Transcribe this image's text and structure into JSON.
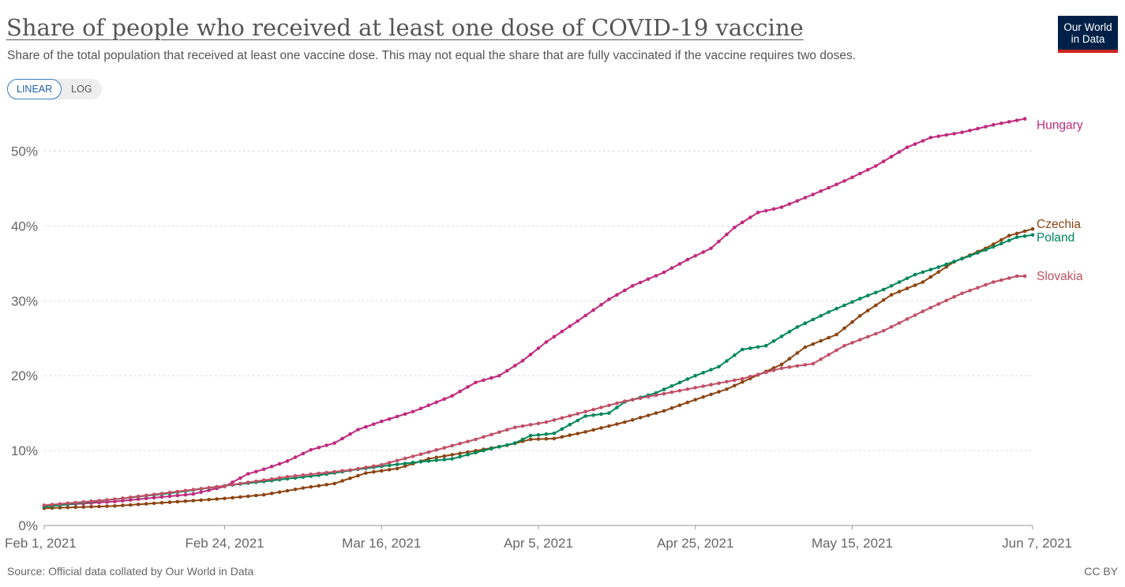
{
  "header": {
    "title": "Share of people who received at least one dose of COVID-19 vaccine",
    "subtitle": "Share of the total population that received at least one vaccine dose. This may not equal the share that are fully vaccinated if the vaccine requires two doses.",
    "logo_line1": "Our World",
    "logo_line2": "in Data"
  },
  "controls": {
    "linear_label": "LINEAR",
    "log_label": "LOG",
    "selected": "LINEAR"
  },
  "footer": {
    "source": "Source: Official data collated by Our World in Data",
    "license": "CC BY"
  },
  "chart_data": {
    "type": "line",
    "y_unit": "%",
    "ylim": [
      0,
      55
    ],
    "y_ticks": [
      0,
      10,
      20,
      30,
      40,
      50
    ],
    "y_tick_labels": [
      "0%",
      "10%",
      "20%",
      "30%",
      "40%",
      "50%"
    ],
    "x_range": [
      "2021-02-01",
      "2021-06-07"
    ],
    "x_ticks": [
      "2021-02-01",
      "2021-02-24",
      "2021-03-16",
      "2021-04-05",
      "2021-04-25",
      "2021-05-15",
      "2021-06-07"
    ],
    "x_tick_labels": [
      "Feb 1, 2021",
      "Feb 24, 2021",
      "Mar 16, 2021",
      "Apr 5, 2021",
      "Apr 25, 2021",
      "May 15, 2021",
      "Jun 7, 2021"
    ],
    "grid": "horizontal-dashed",
    "legend": "line-end labels",
    "series": [
      {
        "name": "Hungary",
        "color": "#c0297e",
        "points": [
          [
            "2021-02-01",
            2.6
          ],
          [
            "2021-02-10",
            3.2
          ],
          [
            "2021-02-20",
            4.2
          ],
          [
            "2021-02-24",
            5.2
          ],
          [
            "2021-02-27",
            6.9
          ],
          [
            "2021-03-01",
            7.5
          ],
          [
            "2021-03-04",
            8.6
          ],
          [
            "2021-03-07",
            10.1
          ],
          [
            "2021-03-10",
            11.0
          ],
          [
            "2021-03-13",
            12.8
          ],
          [
            "2021-03-16",
            13.9
          ],
          [
            "2021-03-20",
            15.2
          ],
          [
            "2021-03-25",
            17.3
          ],
          [
            "2021-03-28",
            19.1
          ],
          [
            "2021-03-31",
            20.0
          ],
          [
            "2021-04-03",
            22.0
          ],
          [
            "2021-04-06",
            24.5
          ],
          [
            "2021-04-10",
            27.3
          ],
          [
            "2021-04-14",
            30.2
          ],
          [
            "2021-04-17",
            32.0
          ],
          [
            "2021-04-21",
            33.8
          ],
          [
            "2021-04-24",
            35.5
          ],
          [
            "2021-04-27",
            37.0
          ],
          [
            "2021-04-30",
            39.8
          ],
          [
            "2021-05-03",
            41.8
          ],
          [
            "2021-05-06",
            42.5
          ],
          [
            "2021-05-10",
            44.2
          ],
          [
            "2021-05-14",
            46.0
          ],
          [
            "2021-05-18",
            48.0
          ],
          [
            "2021-05-22",
            50.5
          ],
          [
            "2021-05-25",
            51.8
          ],
          [
            "2021-05-29",
            52.5
          ],
          [
            "2021-06-02",
            53.5
          ],
          [
            "2021-06-06",
            54.3
          ]
        ]
      },
      {
        "name": "Czechia",
        "color": "#8c4513",
        "points": [
          [
            "2021-02-01",
            2.3
          ],
          [
            "2021-02-10",
            2.6
          ],
          [
            "2021-02-17",
            3.1
          ],
          [
            "2021-02-24",
            3.6
          ],
          [
            "2021-03-01",
            4.1
          ],
          [
            "2021-03-06",
            5.0
          ],
          [
            "2021-03-10",
            5.6
          ],
          [
            "2021-03-14",
            7.0
          ],
          [
            "2021-03-18",
            7.6
          ],
          [
            "2021-03-22",
            8.9
          ],
          [
            "2021-03-27",
            9.8
          ],
          [
            "2021-04-01",
            10.7
          ],
          [
            "2021-04-04",
            11.5
          ],
          [
            "2021-04-07",
            11.6
          ],
          [
            "2021-04-11",
            12.5
          ],
          [
            "2021-04-16",
            13.8
          ],
          [
            "2021-04-21",
            15.3
          ],
          [
            "2021-04-25",
            16.8
          ],
          [
            "2021-04-29",
            18.2
          ],
          [
            "2021-05-03",
            20.1
          ],
          [
            "2021-05-06",
            21.5
          ],
          [
            "2021-05-09",
            23.8
          ],
          [
            "2021-05-13",
            25.5
          ],
          [
            "2021-05-16",
            28.0
          ],
          [
            "2021-05-20",
            30.8
          ],
          [
            "2021-05-24",
            32.5
          ],
          [
            "2021-05-28",
            35.2
          ],
          [
            "2021-06-01",
            37.0
          ],
          [
            "2021-06-04",
            38.7
          ],
          [
            "2021-06-07",
            39.6
          ]
        ]
      },
      {
        "name": "Poland",
        "color": "#00875a",
        "points": [
          [
            "2021-02-01",
            2.5
          ],
          [
            "2021-02-10",
            3.5
          ],
          [
            "2021-02-17",
            4.3
          ],
          [
            "2021-02-24",
            5.3
          ],
          [
            "2021-03-02",
            6.0
          ],
          [
            "2021-03-08",
            6.7
          ],
          [
            "2021-03-13",
            7.5
          ],
          [
            "2021-03-16",
            7.9
          ],
          [
            "2021-03-20",
            8.4
          ],
          [
            "2021-03-25",
            8.9
          ],
          [
            "2021-03-29",
            10.0
          ],
          [
            "2021-04-02",
            11.0
          ],
          [
            "2021-04-04",
            12.0
          ],
          [
            "2021-04-07",
            12.3
          ],
          [
            "2021-04-11",
            14.6
          ],
          [
            "2021-04-14",
            15.0
          ],
          [
            "2021-04-16",
            16.5
          ],
          [
            "2021-04-20",
            17.7
          ],
          [
            "2021-04-25",
            20.0
          ],
          [
            "2021-04-28",
            21.2
          ],
          [
            "2021-05-01",
            23.5
          ],
          [
            "2021-05-04",
            24.0
          ],
          [
            "2021-05-08",
            26.5
          ],
          [
            "2021-05-12",
            28.5
          ],
          [
            "2021-05-16",
            30.3
          ],
          [
            "2021-05-19",
            31.5
          ],
          [
            "2021-05-23",
            33.5
          ],
          [
            "2021-05-26",
            34.5
          ],
          [
            "2021-05-30",
            36.0
          ],
          [
            "2021-06-02",
            37.2
          ],
          [
            "2021-06-05",
            38.5
          ],
          [
            "2021-06-07",
            38.8
          ]
        ]
      },
      {
        "name": "Slovakia",
        "color": "#c15065",
        "points": [
          [
            "2021-02-01",
            2.7
          ],
          [
            "2021-02-10",
            3.5
          ],
          [
            "2021-02-17",
            4.4
          ],
          [
            "2021-02-24",
            5.3
          ],
          [
            "2021-03-04",
            6.5
          ],
          [
            "2021-03-12",
            7.4
          ],
          [
            "2021-03-16",
            8.1
          ],
          [
            "2021-03-22",
            9.8
          ],
          [
            "2021-03-28",
            11.5
          ],
          [
            "2021-04-02",
            13.1
          ],
          [
            "2021-04-06",
            13.8
          ],
          [
            "2021-04-11",
            15.2
          ],
          [
            "2021-04-16",
            16.6
          ],
          [
            "2021-04-21",
            17.6
          ],
          [
            "2021-04-26",
            18.6
          ],
          [
            "2021-05-01",
            19.6
          ],
          [
            "2021-05-06",
            21.0
          ],
          [
            "2021-05-10",
            21.6
          ],
          [
            "2021-05-14",
            24.0
          ],
          [
            "2021-05-19",
            26.0
          ],
          [
            "2021-05-24",
            28.6
          ],
          [
            "2021-05-29",
            31.0
          ],
          [
            "2021-06-02",
            32.5
          ],
          [
            "2021-06-05",
            33.3
          ],
          [
            "2021-06-06",
            33.3
          ]
        ]
      }
    ]
  }
}
